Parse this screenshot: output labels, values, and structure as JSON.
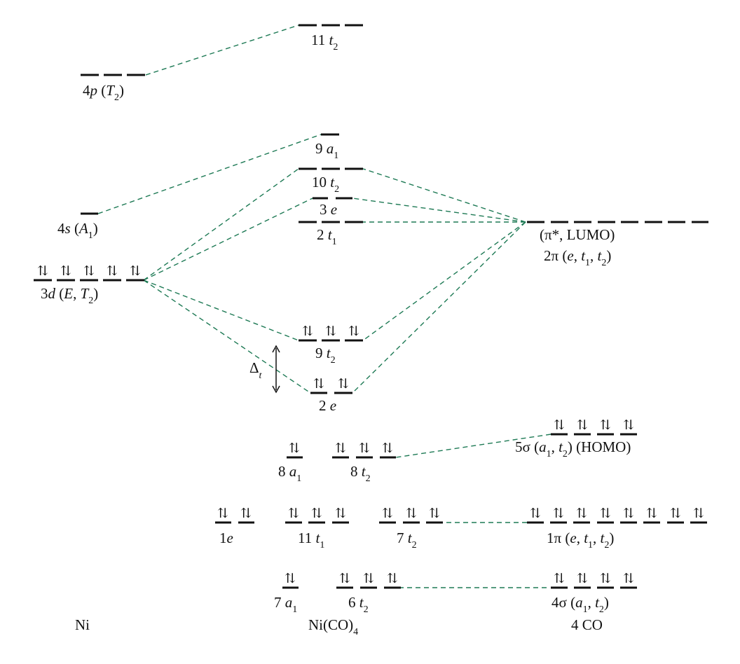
{
  "columns": {
    "ni": "Ni",
    "complex": "Ni(CO)",
    "complex_sub": "4",
    "co": "4 CO"
  },
  "labels": {
    "ni_4p": {
      "main": "4",
      "it": "p",
      "rest": " (",
      "it2": "T",
      "sub": "2",
      "tail": ")"
    },
    "ni_4s": {
      "main": "4",
      "it": "s",
      "rest": " (",
      "it2": "A",
      "sub": "1",
      "tail": ")"
    },
    "ni_3d": {
      "main": "3",
      "it": "d",
      "rest": " (",
      "it2": "E",
      "mid": ", ",
      "it3": "T",
      "sub": "2",
      "tail": ")"
    },
    "ni_1e": {
      "main": "1",
      "it": "e"
    },
    "mo_11t2": {
      "main": "11 ",
      "it": "t",
      "sub": "2"
    },
    "mo_9a1": {
      "main": "9 ",
      "it": "a",
      "sub": "1"
    },
    "mo_10t2": {
      "main": "10 ",
      "it": "t",
      "sub": "2"
    },
    "mo_3e": {
      "main": "3 ",
      "it": "e"
    },
    "mo_2t1": {
      "main": "2 ",
      "it": "t",
      "sub": "1"
    },
    "mo_9t2": {
      "main": "9 ",
      "it": "t",
      "sub": "2"
    },
    "mo_2e": {
      "main": "2 ",
      "it": "e"
    },
    "mo_8a1": {
      "main": "8 ",
      "it": "a",
      "sub": "1"
    },
    "mo_8t2": {
      "main": "8 ",
      "it": "t",
      "sub": "2"
    },
    "mo_11t1": {
      "main": "11 ",
      "it": "t",
      "sub": "1"
    },
    "mo_7t2": {
      "main": "7 ",
      "it": "t",
      "sub": "2"
    },
    "mo_7a1": {
      "main": "7 ",
      "it": "a",
      "sub": "1"
    },
    "mo_6t2": {
      "main": "6 ",
      "it": "t",
      "sub": "2"
    },
    "co_lumo_1": "(π*, LUMO)",
    "co_lumo_2": {
      "main": "2π (",
      "it": "e",
      "mid": ", ",
      "it2": "t",
      "sub": "1",
      "mid2": ", ",
      "it3": "t",
      "sub2": "2",
      "tail": ")"
    },
    "co_5sigma": {
      "main": "5σ (",
      "it": "a",
      "sub": "1",
      "mid": ", ",
      "it2": "t",
      "sub2": "2",
      "tail": ") (HOMO)"
    },
    "co_1pi": {
      "main": "1π (",
      "it": "e",
      "mid": ", ",
      "it2": "t",
      "sub": "1",
      "mid2": ", ",
      "it3": "t",
      "sub2": "2",
      "tail": ")"
    },
    "co_4sigma": {
      "main": "4σ (",
      "it": "a",
      "sub": "1",
      "mid": ", ",
      "it2": "t",
      "sub2": "2",
      "tail": ")"
    },
    "delta": {
      "main": "Δ",
      "sub": "t"
    }
  },
  "spin_pair": "⇅"
}
